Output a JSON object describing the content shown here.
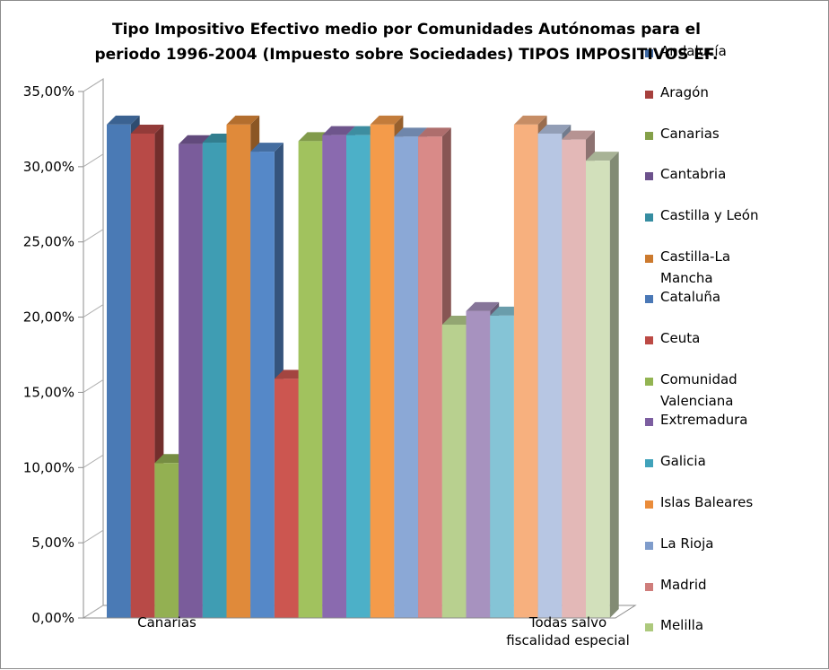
{
  "chart_data": {
    "type": "bar",
    "title_lines": [
      "Tipo Impositivo Efectivo medio por Comunidades Autónomas para el",
      "periodo 1996-2004 (Impuesto sobre Sociedades) TIPOS IMPOSITIVOS EF."
    ],
    "categories": [
      "Canarias",
      "Todas salvo fiscalidad especial"
    ],
    "category_label_lines": [
      [
        "Canarias"
      ],
      [
        "Todas salvo",
        "fiscalidad especial"
      ]
    ],
    "ylim": [
      0,
      0.35
    ],
    "yticks": [
      0,
      0.05,
      0.1,
      0.15,
      0.2,
      0.25,
      0.3,
      0.35
    ],
    "ytick_labels": [
      "0,00%",
      "5,00%",
      "10,00%",
      "15,00%",
      "20,00%",
      "25,00%",
      "30,00%",
      "35,00%"
    ],
    "legend_position": "right",
    "grid": false,
    "series_sets": [
      {
        "category": "Canarias",
        "bars": [
          {
            "name": "Andalucía",
            "value": 0.328,
            "color": "#4a7ab5"
          },
          {
            "name": "Aragón",
            "value": 0.322,
            "color": "#b84a47"
          },
          {
            "name": "Canarias",
            "value": 0.103,
            "color": "#93b052"
          },
          {
            "name": "Cantabria",
            "value": 0.315,
            "color": "#7a5c9b"
          },
          {
            "name": "Castilla y León",
            "value": 0.316,
            "color": "#3f9db3"
          },
          {
            "name": "Castilla-La Mancha",
            "value": 0.328,
            "color": "#e08a3a"
          },
          {
            "name": "Cataluña",
            "value": 0.31,
            "color": "#5588c8"
          },
          {
            "name": "Ceuta",
            "value": 0.159,
            "color": "#cc5650"
          }
        ]
      },
      {
        "category": "Todas salvo fiscalidad especial",
        "bars": [
          {
            "name": "Comunidad Valenciana",
            "value": 0.317,
            "color": "#a1c25e"
          },
          {
            "name": "Extremadura",
            "value": 0.321,
            "color": "#8a6aaf"
          },
          {
            "name": "Galicia",
            "value": 0.321,
            "color": "#4cb0c8"
          },
          {
            "name": "Islas Baleares",
            "value": 0.328,
            "color": "#f49b4a"
          },
          {
            "name": "La Rioja",
            "value": 0.32,
            "color": "#8ba8d6"
          },
          {
            "name": "Madrid",
            "value": 0.32,
            "color": "#d98a88"
          },
          {
            "name": "Melilla",
            "value": 0.195,
            "color": "#b8d08f"
          },
          {
            "name": "Extremadura",
            "value": 0.204,
            "color": "#a792bf"
          },
          {
            "name": "Galicia",
            "value": 0.201,
            "color": "#85c4d6"
          },
          {
            "name": "Islas Baleares",
            "value": 0.328,
            "color": "#f7b07e"
          },
          {
            "name": "La Rioja",
            "value": 0.322,
            "color": "#b7c6e3"
          },
          {
            "name": "Madrid",
            "value": 0.318,
            "color": "#e3b8b7"
          },
          {
            "name": "Melilla",
            "value": 0.304,
            "color": "#d2e0bb"
          }
        ]
      }
    ],
    "legend": [
      {
        "name": "Andalucía",
        "color": "#3f6aa4"
      },
      {
        "name": "Aragón",
        "color": "#a6403d"
      },
      {
        "name": "Canarias",
        "color": "#84a049"
      },
      {
        "name": "Cantabria",
        "color": "#6c518c"
      },
      {
        "name": "Castilla y León",
        "color": "#368da1"
      },
      {
        "name": "Castilla-La Mancha",
        "color": "#cc7a2e"
      },
      {
        "name": "Cataluña",
        "color": "#4a78b6"
      },
      {
        "name": "Ceuta",
        "color": "#bc4a45"
      },
      {
        "name": "Comunidad Valenciana",
        "color": "#93b452"
      },
      {
        "name": "Extremadura",
        "color": "#7c5ea0"
      },
      {
        "name": "Galicia",
        "color": "#40a2ba"
      },
      {
        "name": "Islas Baleares",
        "color": "#ea8c3a"
      },
      {
        "name": "La Rioja",
        "color": "#7f9ccb"
      },
      {
        "name": "Madrid",
        "color": "#cf7d7b"
      },
      {
        "name": "Melilla",
        "color": "#adc97d"
      }
    ]
  }
}
